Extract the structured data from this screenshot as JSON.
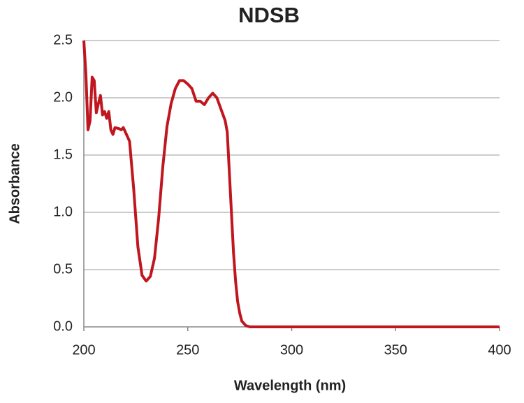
{
  "chart_data": {
    "type": "line",
    "title": "NDSB",
    "x_label": "Wavelength (nm)",
    "y_label": "Absorbance",
    "xlim": [
      200,
      400
    ],
    "xticks": [
      200,
      250,
      300,
      350,
      400
    ],
    "ylim": [
      0,
      2.5
    ],
    "yticks": [
      {
        "value": 0,
        "label": "0.0"
      },
      0.5,
      {
        "value": 1,
        "label": "1.0"
      },
      1.5,
      {
        "value": 2,
        "label": "2.0"
      },
      2.5
    ],
    "grid": true,
    "x": [
      200,
      201,
      202,
      203,
      204,
      205,
      206,
      207,
      208,
      209,
      210,
      211,
      212,
      213,
      214,
      215,
      217,
      218,
      219,
      220,
      222,
      224,
      226,
      228,
      230,
      232,
      234,
      236,
      238,
      240,
      242,
      244,
      246,
      248,
      250,
      252,
      254,
      256,
      258,
      260,
      262,
      264,
      266,
      268,
      269,
      270,
      271,
      272,
      273,
      274,
      275,
      276,
      278,
      280,
      300,
      350,
      400
    ],
    "series": [
      {
        "name": "NDSB",
        "color": "#c0161f",
        "values": [
          2.5,
          2.2,
          1.72,
          1.8,
          2.18,
          2.15,
          1.87,
          1.95,
          2.02,
          1.85,
          1.88,
          1.82,
          1.88,
          1.72,
          1.68,
          1.74,
          1.73,
          1.72,
          1.74,
          1.7,
          1.62,
          1.2,
          0.7,
          0.45,
          0.4,
          0.44,
          0.6,
          0.95,
          1.4,
          1.75,
          1.95,
          2.08,
          2.15,
          2.15,
          2.12,
          2.08,
          1.97,
          1.97,
          1.94,
          2.0,
          2.04,
          2.0,
          1.9,
          1.8,
          1.7,
          1.35,
          1.0,
          0.65,
          0.4,
          0.22,
          0.12,
          0.05,
          0.01,
          0.0,
          0.0,
          0.0,
          0.0
        ]
      }
    ]
  }
}
